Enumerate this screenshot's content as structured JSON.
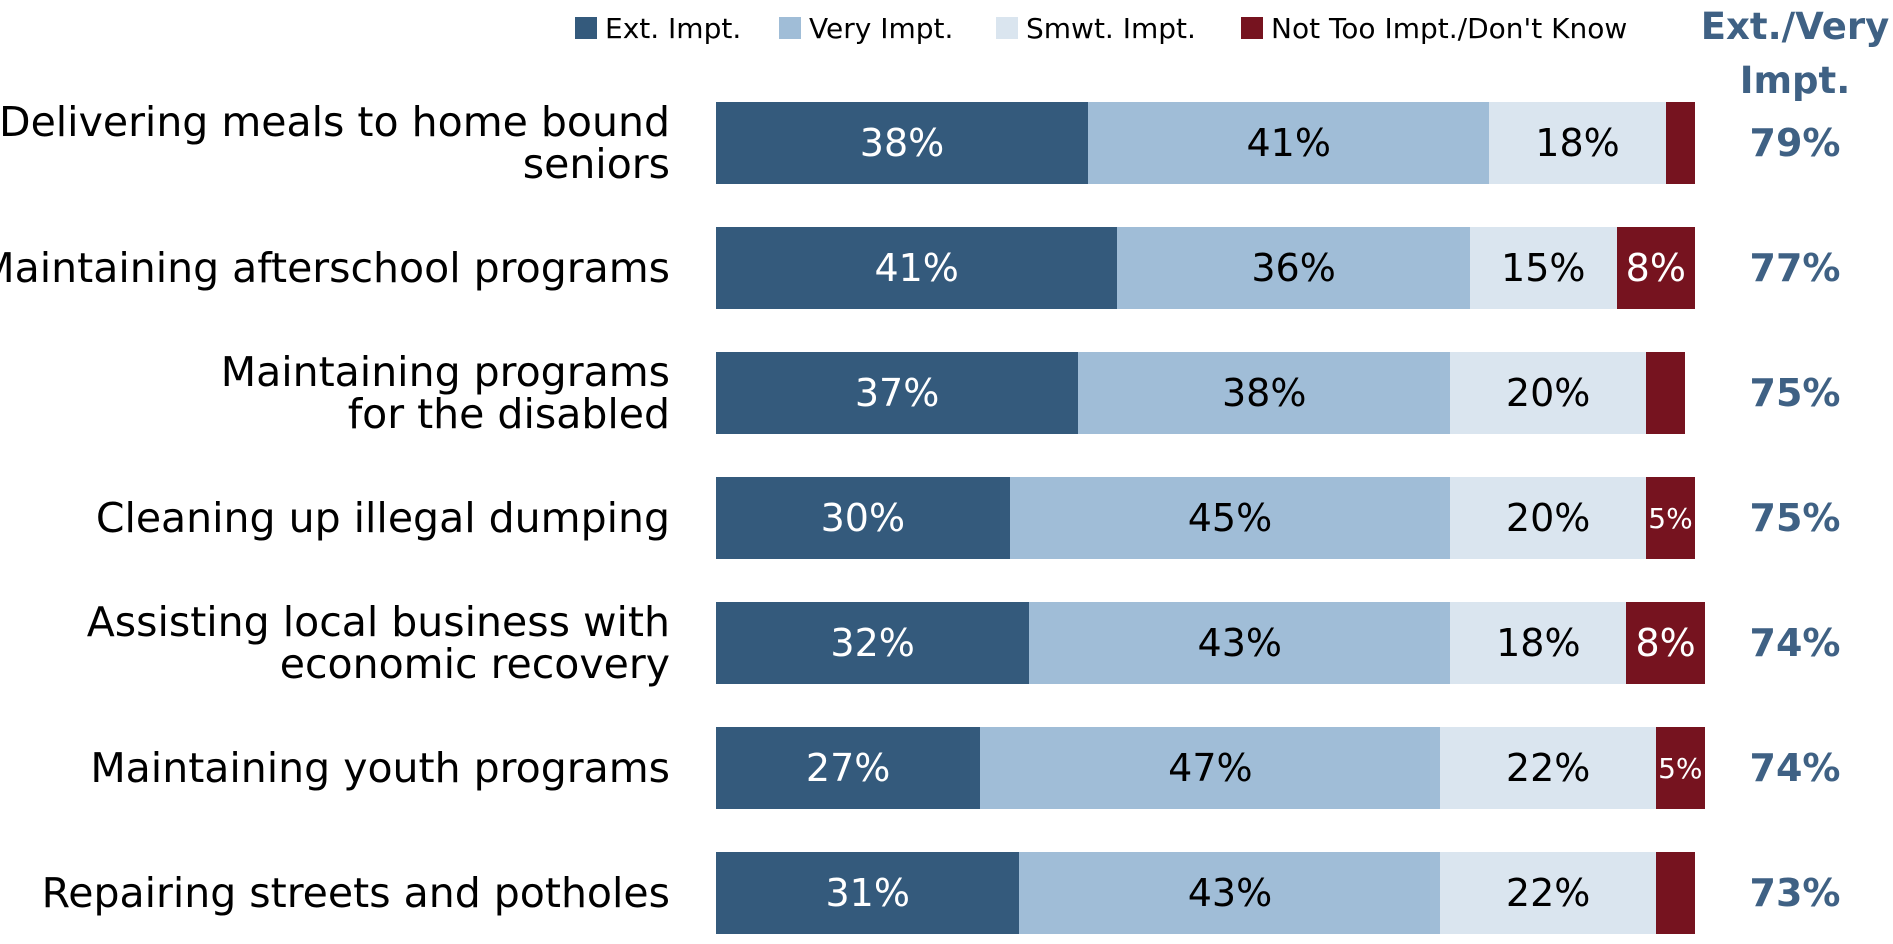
{
  "chart_data": {
    "type": "stacked_barh",
    "categories": [
      "Delivering meals to home bound\nseniors",
      "Maintaining afterschool programs",
      "Maintaining programs\nfor the disabled",
      "Cleaning up illegal dumping",
      "Assisting local business with\neconomic recovery",
      "Maintaining youth programs",
      "Repairing streets and potholes"
    ],
    "xlim": [
      0,
      100
    ],
    "series": [
      {
        "name": "Ext. Impt.",
        "color": "#345a7c",
        "text_color": "#ffffff",
        "values": [
          38,
          41,
          37,
          30,
          32,
          27,
          31
        ],
        "value_labels": [
          "38%",
          "41%",
          "37%",
          "30%",
          "32%",
          "27%",
          "31%"
        ]
      },
      {
        "name": "Very Impt.",
        "color": "#a0bdd7",
        "text_color": "#000000",
        "values": [
          41,
          36,
          38,
          45,
          43,
          47,
          43
        ],
        "value_labels": [
          "41%",
          "36%",
          "38%",
          "45%",
          "43%",
          "47%",
          "43%"
        ]
      },
      {
        "name": "Smwt. Impt.",
        "color": "#dae5ef",
        "text_color": "#000000",
        "values": [
          18,
          15,
          20,
          20,
          18,
          22,
          22
        ],
        "value_labels": [
          "18%",
          "15%",
          "20%",
          "20%",
          "18%",
          "22%",
          "22%"
        ]
      },
      {
        "name": "Not Too Impt./Don't Know",
        "color": "#76131f",
        "text_color": "#ffffff",
        "values": [
          3,
          8,
          4,
          5,
          8,
          5,
          4
        ],
        "value_labels": [
          null,
          "8%",
          null,
          "5%",
          "8%",
          "5%",
          null
        ]
      }
    ],
    "net": {
      "title": "Ext./Very\nImpt.",
      "color": "#3f6184",
      "values": [
        79,
        77,
        75,
        75,
        74,
        74,
        73
      ],
      "value_labels": [
        "79%",
        "77%",
        "75%",
        "75%",
        "74%",
        "74%",
        "73%"
      ]
    }
  }
}
